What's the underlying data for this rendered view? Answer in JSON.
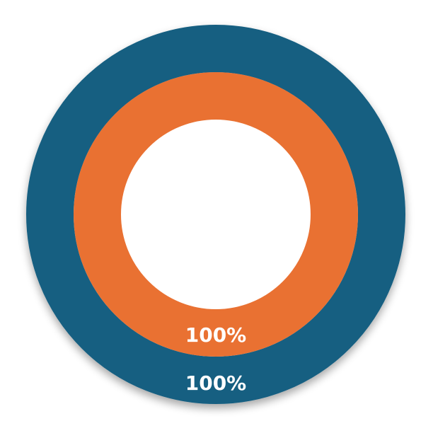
{
  "chart_data": {
    "type": "pie",
    "variant": "doughnut",
    "rings": [
      {
        "values": [
          100
        ],
        "label": "100%",
        "color": "#155F81"
      },
      {
        "values": [
          100
        ],
        "label": "100%",
        "color": "#E97132"
      }
    ],
    "legend": "none",
    "grid": false
  }
}
